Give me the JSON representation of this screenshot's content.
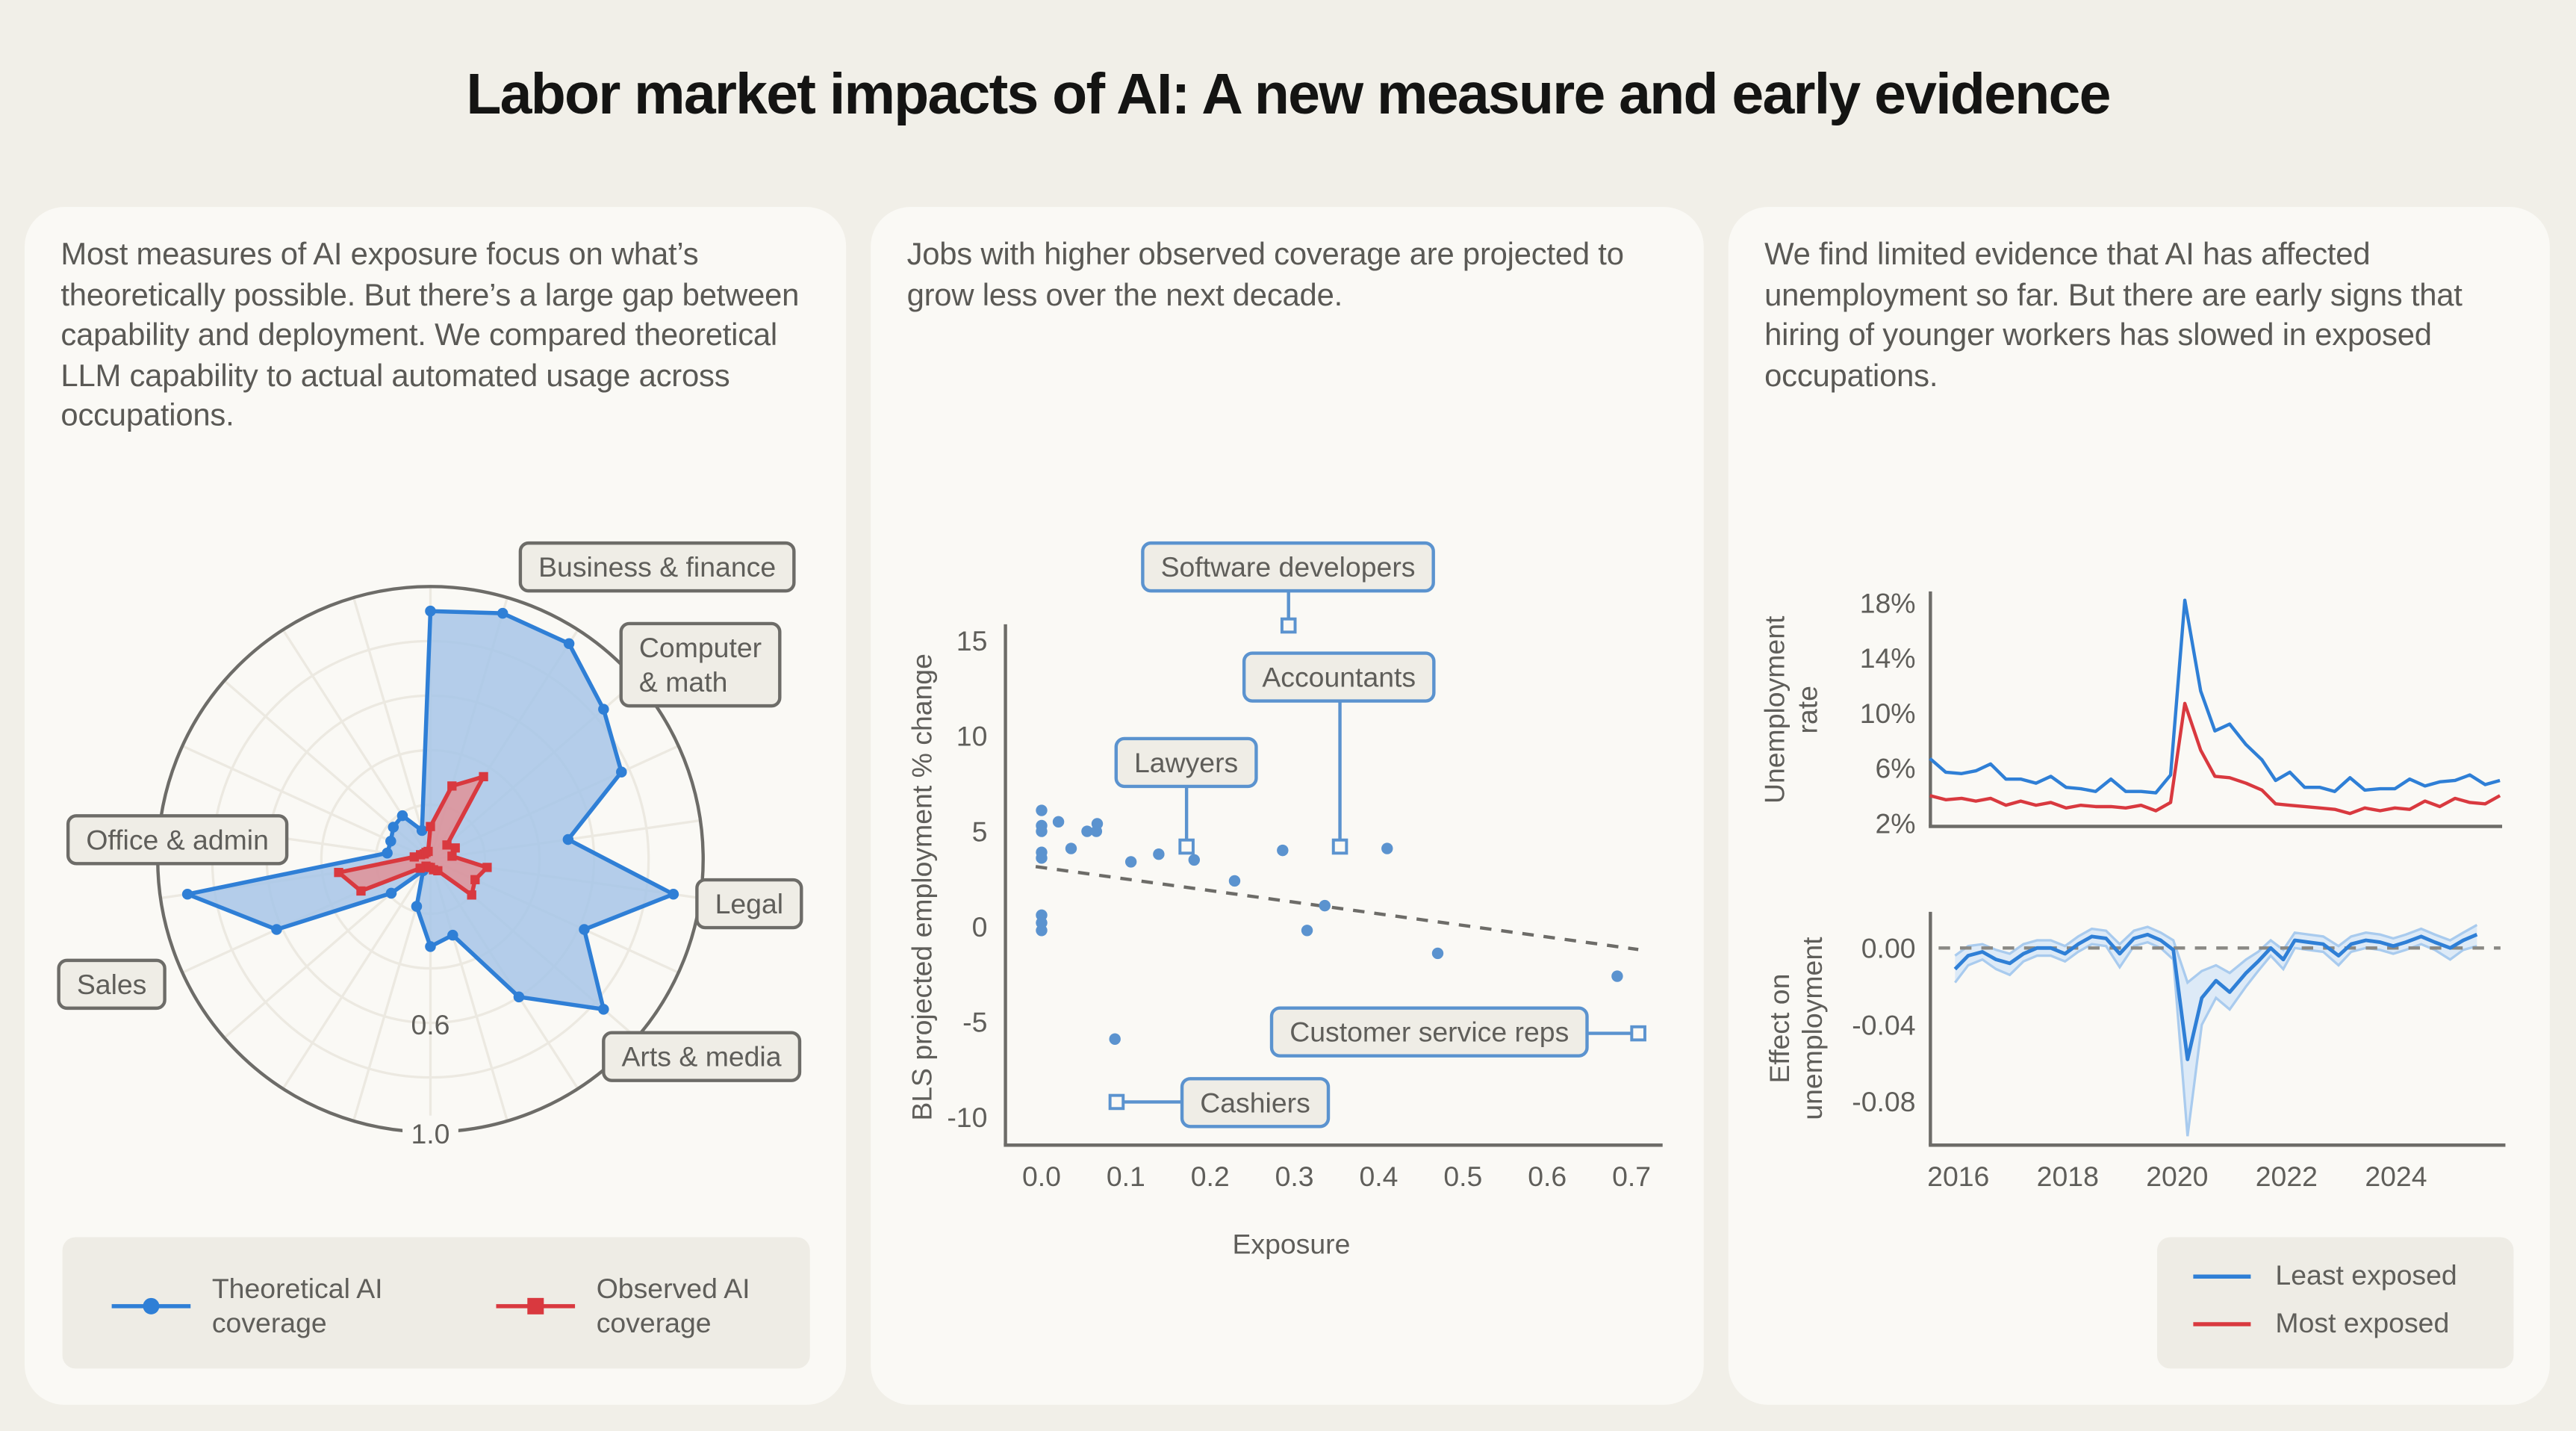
{
  "title": "Labor market impacts of AI: A new measure and early evidence",
  "colors": {
    "background": "#f1efe8",
    "panel": "#faf9f5",
    "theoretical": "#2f7fd6",
    "observed": "#d9393f",
    "scatter": "#5b93cf",
    "label_box": "#efede6"
  },
  "panels": [
    {
      "text": "Most measures of AI exposure focus on what’s theoretically possible. But there’s a large gap between capability and deployment. We compared theoretical LLM capability to actual automated usage across occupations."
    },
    {
      "text": "Jobs with higher observed coverage are projected to grow less over the next decade."
    },
    {
      "text": "We find limited evidence that AI has affected unemployment so far. But there are early signs that hiring of younger workers has slowed in exposed occupations."
    }
  ],
  "chart_data": [
    {
      "type": "radar",
      "radial_range": [
        0,
        1.0
      ],
      "radial_ticks": [
        {
          "value": 0.6,
          "label": "0.6"
        },
        {
          "value": 1.0,
          "label": "1.0"
        }
      ],
      "grid": true,
      "category_groups": [
        "Business & finance",
        "Computer & math",
        "Legal",
        "Arts & media",
        "Sales",
        "Office & admin"
      ],
      "series": [
        {
          "name": "Theoretical AI coverage",
          "marker": "circle",
          "values": [
            0.91,
            0.94,
            0.94,
            0.84,
            0.77,
            0.51,
            0.9,
            0.62,
            0.84,
            0.6,
            0.29,
            0.32,
            0.18,
            0.05,
            0.19,
            0.62,
            0.9,
            0.16,
            0.16,
            0.18,
            0.19,
            0.11
          ]
        },
        {
          "name": "Observed AI coverage",
          "marker": "square",
          "values": [
            0.12,
            0.28,
            0.36,
            0.08,
            0.1,
            0.08,
            0.21,
            0.18,
            0.2,
            0.05,
            0.04,
            0.03,
            0.03,
            0.03,
            0.05,
            0.28,
            0.34,
            0.06,
            0.04,
            0.03,
            0.03,
            0.03
          ]
        }
      ],
      "legend": {
        "placement": "bottom",
        "items": [
          {
            "label": "Theoretical AI coverage"
          },
          {
            "label": "Observed AI coverage"
          }
        ]
      }
    },
    {
      "type": "scatter",
      "xlabel": "Exposure",
      "ylabel": "BLS projected employment % change",
      "xlim": [
        -0.04,
        0.74
      ],
      "ylim": [
        -11,
        16
      ],
      "xticks": [
        "0.0",
        "0.1",
        "0.2",
        "0.3",
        "0.4",
        "0.5",
        "0.6",
        "0.7"
      ],
      "yticks": [
        "15",
        "10",
        "5",
        "0",
        "-5",
        "-10"
      ],
      "points": [
        [
          0.0,
          6.1
        ],
        [
          0.0,
          5.3
        ],
        [
          0.0,
          5.0
        ],
        [
          0.02,
          5.5
        ],
        [
          0.054,
          5.0
        ],
        [
          0.065,
          5.0
        ],
        [
          0.066,
          5.4
        ],
        [
          0.035,
          4.1
        ],
        [
          0.0,
          3.9
        ],
        [
          0.0,
          3.6
        ],
        [
          0.106,
          3.4
        ],
        [
          0.139,
          3.8
        ],
        [
          0.181,
          3.5
        ],
        [
          0.286,
          4.0
        ],
        [
          0.41,
          4.1
        ],
        [
          0.229,
          2.4
        ],
        [
          0.336,
          1.1
        ],
        [
          0.315,
          -0.2
        ],
        [
          0.47,
          -1.4
        ],
        [
          0.683,
          -2.6
        ],
        [
          0.087,
          -5.9
        ],
        [
          0.0,
          0.6
        ],
        [
          0.0,
          0.2
        ],
        [
          0.0,
          -0.2
        ]
      ],
      "annotated": [
        {
          "label": "Software developers",
          "x": 0.293,
          "y": 15.8
        },
        {
          "label": "Accountants",
          "x": 0.354,
          "y": 4.2
        },
        {
          "label": "Lawyers",
          "x": 0.172,
          "y": 4.2
        },
        {
          "label": "Customer service reps",
          "x": 0.708,
          "y": -5.6
        },
        {
          "label": "Cashiers",
          "x": 0.089,
          "y": -9.2
        }
      ],
      "trendline": {
        "style": "dashed",
        "from": [
          0.0,
          3.1
        ],
        "to": [
          0.7,
          -1.2
        ]
      }
    },
    {
      "type": "line",
      "ylabel": "Unemployment rate",
      "ylim": [
        2,
        18
      ],
      "yticks": [
        "18%",
        "14%",
        "10%",
        "6%",
        "2%"
      ],
      "ytick_values": [
        18,
        14,
        10,
        6,
        2
      ],
      "x": [
        2015.48,
        2015.77,
        2016.06,
        2016.32,
        2016.59,
        2016.87,
        2017.14,
        2017.42,
        2017.69,
        2017.97,
        2018.24,
        2018.51,
        2018.79,
        2019.06,
        2019.34,
        2019.61,
        2019.88,
        2020.14,
        2020.43,
        2020.69,
        2020.96,
        2021.26,
        2021.55,
        2021.8,
        2022.06,
        2022.33,
        2022.61,
        2022.88,
        2023.16,
        2023.43,
        2023.71,
        2023.98,
        2024.25,
        2024.53,
        2024.8,
        2025.08,
        2025.35,
        2025.63,
        2025.9
      ],
      "series": [
        {
          "name": "Least exposed",
          "values": [
            6.7,
            5.7,
            5.6,
            5.8,
            6.3,
            5.2,
            5.2,
            4.9,
            5.4,
            4.6,
            4.5,
            4.3,
            5.2,
            4.3,
            4.3,
            4.2,
            5.5,
            18.2,
            11.6,
            8.7,
            9.2,
            7.7,
            6.6,
            5.1,
            5.7,
            4.6,
            4.6,
            4.3,
            5.3,
            4.4,
            4.5,
            4.5,
            5.2,
            4.7,
            5.0,
            5.1,
            5.5,
            4.8,
            5.1
          ]
        },
        {
          "name": "Most exposed",
          "values": [
            4.0,
            3.7,
            3.8,
            3.6,
            3.8,
            3.3,
            3.6,
            3.3,
            3.5,
            3.1,
            3.3,
            3.2,
            3.2,
            3.1,
            3.3,
            2.9,
            3.5,
            10.7,
            7.3,
            5.4,
            5.3,
            4.9,
            4.4,
            3.4,
            3.3,
            3.2,
            3.1,
            3.0,
            2.7,
            3.1,
            2.9,
            3.1,
            3.0,
            3.6,
            3.2,
            3.8,
            3.5,
            3.4,
            4.0
          ]
        }
      ],
      "legend": {
        "placement": "bottom-right",
        "items": [
          {
            "label": "Least exposed"
          },
          {
            "label": "Most exposed"
          }
        ]
      }
    },
    {
      "type": "line",
      "ylabel": "Effect on unemployment",
      "ylim": [
        -0.103,
        0.018
      ],
      "yticks": [
        "0.00",
        "-0.04",
        "-0.08"
      ],
      "ytick_values": [
        0,
        -0.04,
        -0.08
      ],
      "xticks": [
        "2016",
        "2018",
        "2020",
        "2022",
        "2024"
      ],
      "xtick_values": [
        2016,
        2018,
        2020,
        2022,
        2024
      ],
      "reference_line": {
        "y": 0,
        "style": "dashed"
      },
      "x": [
        2015.94,
        2016.18,
        2016.44,
        2016.69,
        2016.94,
        2017.19,
        2017.44,
        2017.69,
        2017.95,
        2018.19,
        2018.44,
        2018.7,
        2018.95,
        2019.21,
        2019.46,
        2019.7,
        2019.93,
        2020.19,
        2020.45,
        2020.71,
        2020.96,
        2021.26,
        2021.48,
        2021.71,
        2021.94,
        2022.15,
        2022.4,
        2022.67,
        2022.95,
        2023.18,
        2023.45,
        2023.71,
        2023.95,
        2024.18,
        2024.46,
        2024.71,
        2024.99,
        2025.23,
        2025.48
      ],
      "series": [
        {
          "values": [
            -0.011,
            -0.004,
            -0.002,
            -0.006,
            -0.008,
            -0.003,
            0.0,
            0.0,
            -0.003,
            0.002,
            0.006,
            0.005,
            -0.003,
            0.005,
            0.007,
            0.004,
            -0.001,
            -0.058,
            -0.026,
            -0.017,
            -0.023,
            -0.013,
            -0.007,
            0.0,
            -0.006,
            0.004,
            0.003,
            0.002,
            -0.004,
            0.002,
            0.004,
            0.003,
            0.001,
            0.003,
            0.006,
            0.003,
            0.0,
            0.004,
            0.007
          ],
          "ci_low": [
            -0.018,
            -0.009,
            -0.006,
            -0.011,
            -0.014,
            -0.007,
            -0.004,
            -0.004,
            -0.007,
            -0.002,
            0.002,
            0.001,
            -0.01,
            0.001,
            0.003,
            0.0,
            -0.006,
            -0.098,
            -0.04,
            -0.026,
            -0.032,
            -0.02,
            -0.012,
            -0.004,
            -0.011,
            0.0,
            -0.001,
            -0.002,
            -0.009,
            -0.002,
            0.0,
            -0.001,
            -0.003,
            -0.001,
            0.002,
            -0.001,
            -0.006,
            -0.001,
            0.001
          ],
          "ci_high": [
            -0.004,
            0.001,
            0.002,
            -0.001,
            -0.003,
            0.002,
            0.004,
            0.004,
            0.001,
            0.006,
            0.01,
            0.009,
            0.002,
            0.009,
            0.011,
            0.008,
            0.004,
            -0.018,
            -0.012,
            -0.009,
            -0.013,
            -0.006,
            -0.002,
            0.004,
            -0.001,
            0.008,
            0.007,
            0.006,
            0.001,
            0.006,
            0.008,
            0.007,
            0.005,
            0.007,
            0.01,
            0.007,
            0.004,
            0.008,
            0.012
          ]
        }
      ]
    }
  ]
}
